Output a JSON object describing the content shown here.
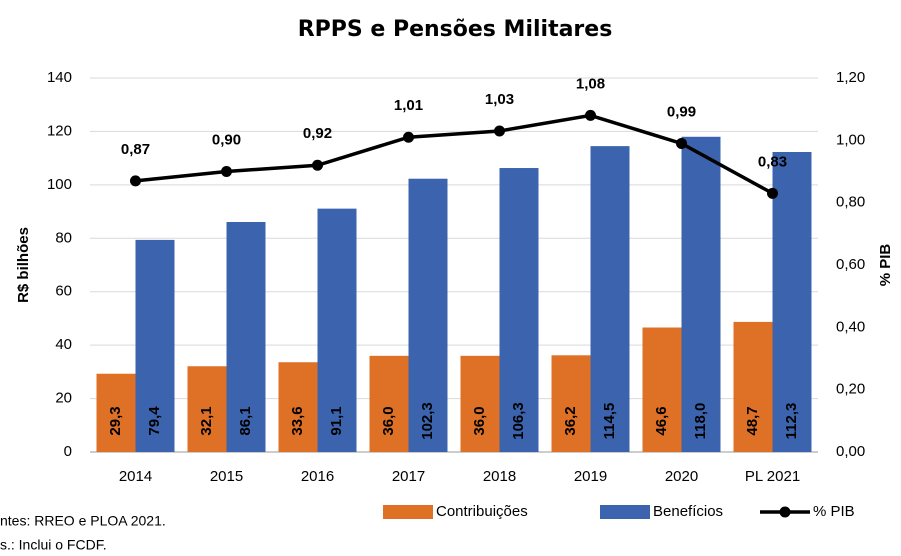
{
  "chart_data": {
    "type": "bar",
    "title": "RPPS e Pensões Militares",
    "y_label": "R$ bilhões",
    "y2_label": "% PIB",
    "categories": [
      "2014",
      "2015",
      "2016",
      "2017",
      "2018",
      "2019",
      "2020",
      "PL 2021"
    ],
    "series": [
      {
        "name": "Contribuições",
        "color": "#DF7127",
        "values": [
          29.3,
          32.1,
          33.6,
          36.0,
          36.0,
          36.2,
          46.6,
          48.7
        ],
        "value_labels": [
          "29,3",
          "32,1",
          "33,6",
          "36,0",
          "36,0",
          "36,2",
          "46,6",
          "48,7"
        ]
      },
      {
        "name": "Benefícios",
        "color": "#3C64AE",
        "values": [
          79.4,
          86.1,
          91.1,
          102.3,
          106.3,
          114.5,
          118.0,
          112.3
        ],
        "value_labels": [
          "79,4",
          "86,1",
          "91,1",
          "102,3",
          "106,3",
          "114,5",
          "118,0",
          "112,3"
        ]
      },
      {
        "name": "% PIB",
        "color": "#000000",
        "axis": "y2",
        "type": "line",
        "values": [
          0.87,
          0.9,
          0.92,
          1.01,
          1.03,
          1.08,
          0.99,
          0.83
        ],
        "value_labels": [
          "0,87",
          "0,90",
          "0,92",
          "1,01",
          "1,03",
          "1,08",
          "0,99",
          "0,83"
        ]
      }
    ],
    "ylim": [
      0,
      140
    ],
    "yticks": [
      0,
      20,
      40,
      60,
      80,
      100,
      120,
      140
    ],
    "y2lim": [
      0,
      1.2
    ],
    "y2ticks": [
      {
        "value": 0,
        "label": "0,00"
      },
      {
        "value": 0.2,
        "label": "0,20"
      },
      {
        "value": 0.4,
        "label": "0,40"
      },
      {
        "value": 0.6,
        "label": "0,60"
      },
      {
        "value": 0.8,
        "label": "0,80"
      },
      {
        "value": 1.0,
        "label": "1,00"
      },
      {
        "value": 1.2,
        "label": "1,20"
      }
    ],
    "grid": true,
    "legend": "bottom",
    "notes": [
      "ntes: RREO e PLOA 2021.",
      "s.: Inclui o FCDF."
    ]
  }
}
